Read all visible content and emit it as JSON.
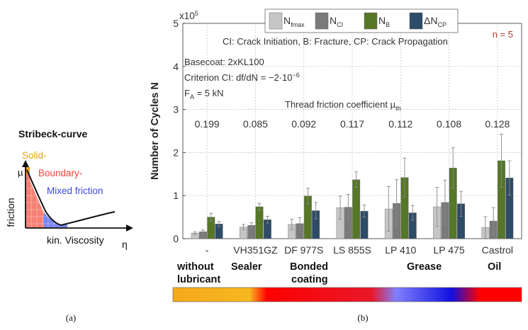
{
  "panel_a": {
    "title": "Stribeck-curve",
    "ylabel": "friction",
    "ysymbol": "µ",
    "xlabel": "kin. Viscosity",
    "xsymbol": "η",
    "regions": [
      {
        "label": "Solid-",
        "color": "#e8a317"
      },
      {
        "label": "Boundary-",
        "color": "#f0453c"
      },
      {
        "label": "Mixed friction",
        "color": "#3d48e0"
      }
    ],
    "caption": "(a)"
  },
  "panel_b": {
    "caption": "(b)",
    "n_label": "n = 5",
    "note_line1": "CI: Crack Initiation, B: Fracture, CP: Crack Propagation",
    "conditions": [
      "Basecoat: 2xKL100",
      "Criterion CI: df/dN = −2·10",
      "F",
      " = 5 kN"
    ],
    "criterion_exp": "−6",
    "force_sub": "A",
    "thread_label": "Thread friction coefficient µ",
    "thread_sub": "th",
    "friction_coefficients": [
      "0.199",
      "0.085",
      "0.092",
      "0.117",
      "0.112",
      "0.108",
      "0.128"
    ],
    "groups": [
      {
        "label": "without\nlubricant"
      },
      {
        "label": "Sealer"
      },
      {
        "label": "Bonded\ncoating"
      },
      {
        "label": "Grease"
      },
      {
        "label": "Oil"
      }
    ],
    "gradient_colors": [
      "#f5a81c",
      "#f7b81f",
      "#ff0000",
      "#e8182a",
      "#8080ff",
      "#1010e0",
      "#ff0000"
    ]
  },
  "chart_data": {
    "type": "bar",
    "ylabel": "Number of Cycles N",
    "y_multiplier": "x10",
    "y_multiplier_exp": "5",
    "ylim": [
      0,
      5
    ],
    "yticks": [
      0,
      1,
      2,
      3,
      4,
      5
    ],
    "grid": true,
    "legend_position": "top-center",
    "categories": [
      "-",
      "VH351GZ",
      "DF 977S",
      "LS 855S",
      "LP 410",
      "LP 475",
      "Castrol"
    ],
    "series": [
      {
        "name": "N",
        "sub": "fmax",
        "color": "#c6c6c6",
        "values": [
          0.13,
          0.27,
          0.33,
          0.72,
          0.69,
          0.74,
          0.26
        ],
        "errors": [
          0.03,
          0.06,
          0.12,
          0.27,
          0.52,
          0.45,
          0.25
        ]
      },
      {
        "name": "N",
        "sub": "CI",
        "color": "#7a7a7a",
        "values": [
          0.16,
          0.31,
          0.35,
          0.73,
          0.82,
          0.84,
          0.41
        ],
        "errors": [
          0.04,
          0.06,
          0.14,
          0.3,
          0.55,
          0.52,
          0.31
        ]
      },
      {
        "name": "N",
        "sub": "B",
        "color": "#567727",
        "values": [
          0.5,
          0.74,
          0.99,
          1.37,
          1.42,
          1.64,
          1.81
        ],
        "errors": [
          0.09,
          0.08,
          0.18,
          0.18,
          0.45,
          0.47,
          0.62
        ]
      },
      {
        "name": "ΔN",
        "sub": "CP",
        "color": "#2e4b68",
        "values": [
          0.34,
          0.44,
          0.65,
          0.64,
          0.6,
          0.81,
          1.41
        ],
        "errors": [
          0.06,
          0.08,
          0.19,
          0.14,
          0.17,
          0.29,
          0.4
        ]
      }
    ]
  }
}
